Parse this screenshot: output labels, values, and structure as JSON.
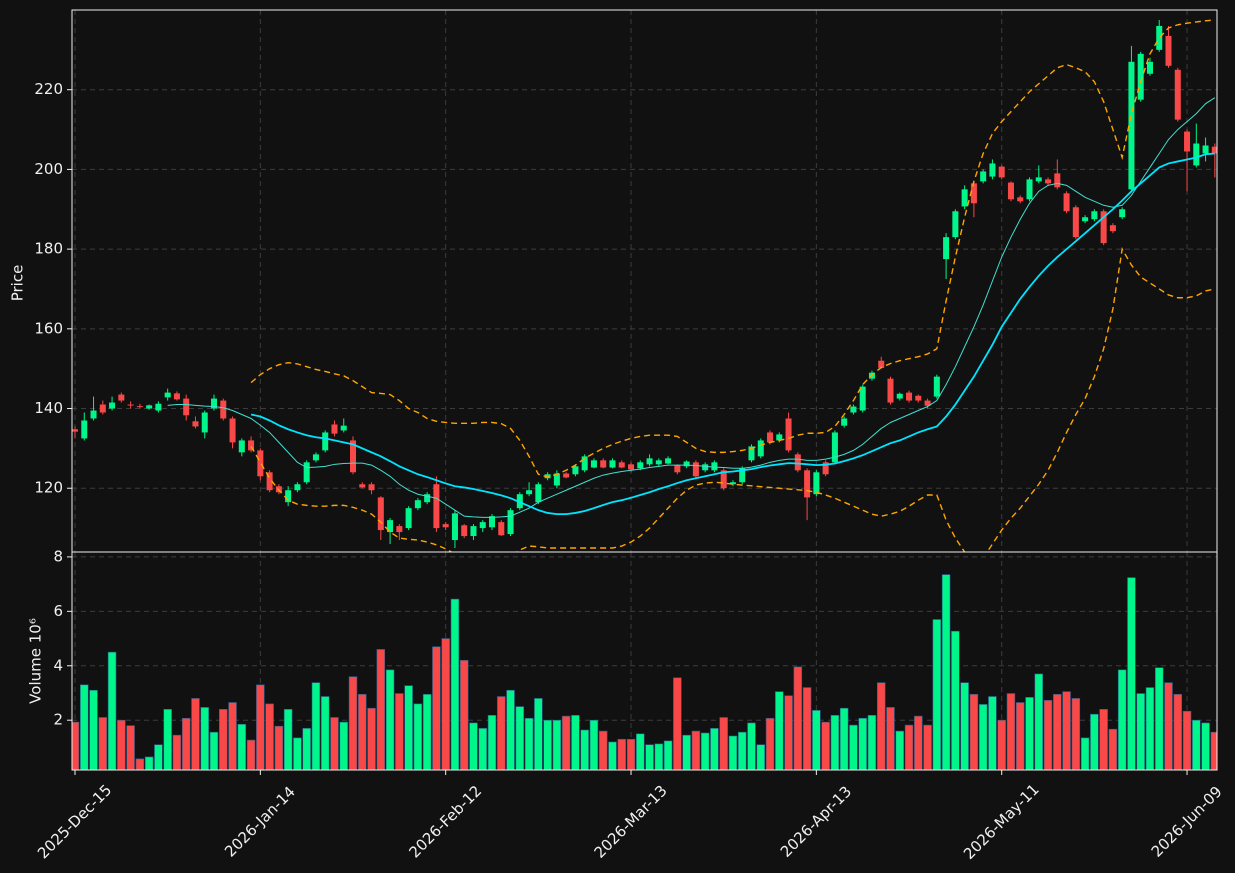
{
  "chart_data": {
    "type": "candlestick",
    "ylabel": "Price",
    "ylim": [
      104,
      240
    ],
    "yticks": [
      120,
      140,
      160,
      180,
      200,
      220
    ],
    "grid": true,
    "up_color": "#00f58a",
    "down_color": "#f84848",
    "categories": [
      "2025-Dec-15",
      null,
      null,
      null,
      null,
      null,
      null,
      null,
      null,
      null,
      null,
      null,
      null,
      null,
      null,
      null,
      null,
      null,
      null,
      null,
      "2026-Jan-14",
      null,
      null,
      null,
      null,
      null,
      null,
      null,
      null,
      null,
      null,
      null,
      null,
      null,
      null,
      null,
      null,
      null,
      null,
      null,
      "2026-Feb-12",
      null,
      null,
      null,
      null,
      null,
      null,
      null,
      null,
      null,
      null,
      null,
      null,
      null,
      null,
      null,
      null,
      null,
      null,
      null,
      "2026-Mar-13",
      null,
      null,
      null,
      null,
      null,
      null,
      null,
      null,
      null,
      null,
      null,
      null,
      null,
      null,
      null,
      null,
      null,
      null,
      null,
      "2026-Apr-13",
      null,
      null,
      null,
      null,
      null,
      null,
      null,
      null,
      null,
      null,
      null,
      null,
      null,
      null,
      null,
      null,
      null,
      null,
      null,
      "2026-May-11",
      null,
      null,
      null,
      null,
      null,
      null,
      null,
      null,
      null,
      null,
      null,
      null,
      null,
      null,
      null,
      null,
      null,
      null,
      null,
      "2026-Jun-09",
      null,
      null,
      null
    ],
    "open": [
      134.8,
      132.5,
      137.5,
      141,
      140,
      143.5,
      141,
      140.6,
      140,
      139.5,
      142.8,
      143.8,
      142.5,
      136.8,
      134,
      140,
      142,
      137.5,
      129,
      132,
      129.5,
      124,
      120.5,
      116.5,
      119.5,
      121.5,
      127,
      129.5,
      136,
      134.5,
      132,
      121,
      121,
      117.7,
      109,
      110.5,
      110,
      115,
      116.5,
      121,
      111,
      107,
      110.7,
      108,
      110,
      110.2,
      111.5,
      108.5,
      115,
      118.5,
      116.5,
      122.5,
      120.7,
      123.7,
      123.5,
      124.5,
      125.2,
      127,
      125.2,
      126.5,
      126,
      125,
      126,
      126,
      126.2,
      125.7,
      125.5,
      126.5,
      124.5,
      124.5,
      124.5,
      121,
      121.5,
      127,
      128,
      134,
      132,
      137.5,
      128.5,
      124.5,
      118.5,
      126.5,
      126.5,
      135.7,
      139,
      139.5,
      147.5,
      152,
      147.5,
      142.5,
      144,
      143.2,
      142,
      143,
      177.5,
      183,
      190.7,
      196.5,
      197,
      198.2,
      200.7,
      196.7,
      193,
      192.5,
      197,
      197.5,
      199,
      194,
      190.5,
      187,
      187.5,
      189.5,
      186,
      188,
      195,
      217.5,
      224,
      230,
      233.5,
      225,
      209.5,
      201,
      204,
      205.7
    ],
    "high": [
      135.5,
      139,
      143,
      142,
      143,
      144,
      141.8,
      141.2,
      141,
      141.8,
      145,
      144.3,
      143.5,
      138,
      139.5,
      143.5,
      142.5,
      138,
      132.5,
      133,
      130,
      124.5,
      121,
      120.5,
      121.5,
      127,
      129,
      134.5,
      137,
      137.5,
      133,
      121.5,
      121.5,
      118,
      112.5,
      111,
      115.5,
      117.5,
      119,
      123,
      111.5,
      114.5,
      111,
      111,
      112,
      113.5,
      112,
      115,
      119,
      121.5,
      121.5,
      124,
      124.5,
      124,
      126,
      128.5,
      127.5,
      127.5,
      127.5,
      127,
      126.5,
      127,
      128.5,
      127.5,
      128,
      126,
      127,
      127,
      126.5,
      127,
      125,
      122,
      125.5,
      131,
      132.5,
      134.5,
      134,
      139,
      129,
      125,
      124.5,
      127,
      134.5,
      138,
      141,
      146,
      149.5,
      153,
      148,
      144,
      144.5,
      143.5,
      142.5,
      148.5,
      184,
      190,
      196,
      197,
      200,
      202.5,
      201,
      197,
      193.5,
      198,
      201,
      198,
      202.5,
      194.5,
      191,
      188.5,
      190,
      190,
      186.5,
      190.5,
      231,
      229.5,
      228,
      237.5,
      236,
      225.5,
      210,
      211.5,
      208,
      206.5
    ],
    "low": [
      132.5,
      132,
      137,
      138.5,
      139.5,
      141.5,
      140,
      140,
      139.7,
      139,
      142,
      142,
      137,
      135,
      132.5,
      139.5,
      137,
      130,
      128,
      129,
      122,
      119,
      118.5,
      115.5,
      119,
      121,
      126.5,
      129,
      133,
      134,
      123.5,
      120,
      118.5,
      107,
      106,
      107,
      109.5,
      114.5,
      116,
      109,
      109.5,
      105,
      107.5,
      107,
      109,
      109.5,
      108,
      108,
      114.5,
      118,
      116,
      122,
      120,
      122.5,
      123,
      124,
      125,
      125,
      125,
      125,
      124,
      124.5,
      125.5,
      125.5,
      126,
      123.5,
      125,
      122.5,
      124,
      124,
      119.5,
      120.5,
      121,
      126.5,
      127.5,
      131,
      131.5,
      129,
      124,
      112,
      118,
      123,
      126,
      135.2,
      138.5,
      139,
      147,
      150,
      141,
      142,
      141.5,
      141.5,
      140,
      142.5,
      172.5,
      182.5,
      190,
      188,
      196.5,
      197.5,
      197.5,
      192,
      191.5,
      192,
      196.5,
      196,
      195,
      189,
      182.5,
      186.5,
      187,
      181,
      184,
      187.5,
      194.5,
      217,
      223.5,
      229.5,
      225.5,
      212,
      194.5,
      200.5,
      202,
      198
    ],
    "close": [
      134.2,
      137,
      139.5,
      139,
      141.5,
      142,
      140.8,
      140.4,
      140.8,
      141.2,
      144,
      142.3,
      138.3,
      135.5,
      139,
      142.5,
      137.5,
      131.5,
      132,
      129.5,
      123,
      119.5,
      119,
      119.5,
      121,
      126.5,
      128.5,
      134,
      133.7,
      135.7,
      124,
      120.2,
      119.5,
      109.5,
      112,
      109,
      115,
      117,
      118.5,
      110,
      110.2,
      113.7,
      108,
      110.5,
      111.5,
      113,
      108.2,
      114.5,
      118.5,
      119.5,
      121,
      123.5,
      123.7,
      122.7,
      125.5,
      128,
      127,
      125.2,
      127,
      125.2,
      124.7,
      126.5,
      127.5,
      127,
      127.5,
      124,
      126.7,
      123,
      126,
      126.5,
      120,
      121.5,
      125,
      130.5,
      132,
      131.5,
      133.5,
      129.5,
      124.5,
      117.7,
      124,
      123.5,
      134,
      137.5,
      140.5,
      145.5,
      149,
      150.2,
      141.5,
      143.7,
      142,
      142,
      140.7,
      148,
      183,
      189.5,
      195,
      191.5,
      199.5,
      201.5,
      198,
      192.5,
      192,
      197.5,
      198,
      196.5,
      195.5,
      189.5,
      183,
      188,
      189.5,
      181.5,
      184.5,
      190,
      227,
      229,
      227,
      236,
      226,
      212.5,
      204.5,
      206.5,
      206,
      204
    ],
    "series": [
      {
        "color": "#40e0d0",
        "linestyle": "solid",
        "values": [
          null,
          null,
          null,
          null,
          null,
          null,
          null,
          null,
          null,
          null,
          140.8,
          141,
          141,
          140.8,
          140.6,
          140.5,
          140.2,
          139.5,
          138.5,
          137.5,
          135.8,
          134,
          131.5,
          129,
          126.5,
          125.2,
          125.3,
          125.5,
          126,
          126.2,
          126.3,
          126.3,
          125.8,
          124.5,
          123,
          121,
          119.5,
          118.5,
          118,
          117.5,
          116,
          114.5,
          113,
          112.8,
          112.7,
          112.7,
          112.8,
          113,
          114,
          115,
          116.5,
          117.5,
          118.5,
          119.5,
          120.5,
          121.5,
          122.5,
          123.3,
          123.8,
          124.2,
          124.5,
          124.8,
          125.2,
          125.5,
          125.8,
          125.8,
          125.8,
          125.7,
          125.5,
          125.3,
          125.2,
          125,
          125,
          125.3,
          125.8,
          126.5,
          127,
          127.3,
          127.3,
          127,
          127,
          127.3,
          127.8,
          128.5,
          129.5,
          131,
          133,
          135,
          136.5,
          137.5,
          138.5,
          139.5,
          140.5,
          142,
          146,
          150.5,
          155.5,
          160.5,
          166,
          172,
          178,
          183,
          187.5,
          191.5,
          194.5,
          196,
          196.5,
          196,
          194.5,
          193,
          192,
          191,
          190.5,
          191,
          193.5,
          197,
          200.5,
          204,
          207.5,
          210,
          212,
          214,
          216.5,
          218
        ]
      },
      {
        "color": "#00e5ff",
        "linestyle": "solid",
        "values": [
          null,
          null,
          null,
          null,
          null,
          null,
          null,
          null,
          null,
          null,
          null,
          null,
          null,
          null,
          null,
          null,
          null,
          null,
          null,
          138.5,
          138,
          137,
          135.8,
          134.8,
          134,
          133.3,
          132.8,
          132.5,
          132,
          131.5,
          131,
          130,
          129,
          128,
          126.8,
          125.5,
          124.5,
          123.5,
          122.8,
          122,
          121.2,
          120.5,
          120.2,
          119.8,
          119.3,
          118.8,
          118.2,
          117.5,
          116.5,
          115.5,
          114.5,
          113.8,
          113.5,
          113.5,
          113.8,
          114.3,
          115,
          115.8,
          116.5,
          117,
          117.6,
          118.3,
          119,
          119.8,
          120.5,
          121.3,
          122,
          122.5,
          123,
          123.5,
          124,
          124.2,
          124.5,
          124.8,
          125.3,
          125.7,
          126,
          126.3,
          126.2,
          126,
          125.8,
          125.9,
          126.2,
          126.8,
          127.5,
          128.3,
          129.3,
          130.3,
          131.3,
          132,
          133,
          134,
          134.8,
          135.5,
          138,
          141,
          144.5,
          148,
          152,
          156,
          160.5,
          164,
          167.5,
          170.5,
          173.3,
          175.8,
          178,
          180,
          182,
          184,
          186,
          188,
          190,
          192.2,
          194.5,
          196.5,
          198.5,
          200.5,
          201.5,
          202,
          202.5,
          203,
          203.8,
          204
        ]
      },
      {
        "color": "#ffa500",
        "linestyle": "dashed",
        "values": [
          null,
          null,
          null,
          null,
          null,
          null,
          null,
          null,
          null,
          null,
          null,
          null,
          null,
          null,
          null,
          null,
          null,
          null,
          null,
          146.5,
          148.5,
          150,
          151,
          151.5,
          151.2,
          150.5,
          149.8,
          149.3,
          148.7,
          148.2,
          147,
          145.5,
          144,
          143.8,
          143.5,
          142,
          140,
          139,
          137.5,
          136.8,
          136.5,
          136.3,
          136.3,
          136.3,
          136.5,
          136.5,
          136.2,
          135,
          132,
          128,
          123.5,
          122.8,
          123.5,
          124.5,
          125.8,
          127.5,
          128.8,
          130,
          131,
          131.8,
          132.5,
          133,
          133.3,
          133.3,
          133.3,
          133,
          131.5,
          130,
          129.2,
          129,
          129,
          129.2,
          129.5,
          130,
          130.8,
          131.5,
          132,
          132.5,
          133.3,
          133.8,
          133.8,
          134,
          135.5,
          138.5,
          142,
          146,
          148.5,
          150.3,
          151.3,
          152,
          152.5,
          153,
          153.7,
          155,
          167,
          178,
          188,
          197,
          204,
          209,
          212,
          214.5,
          217,
          219.5,
          221.5,
          223.5,
          225.5,
          226.3,
          225.5,
          224.5,
          222,
          217,
          210,
          203,
          214,
          222,
          229,
          233,
          235.5,
          236.3,
          236.7,
          237,
          237.3,
          237.5
        ]
      },
      {
        "color": "#ffa500",
        "linestyle": "dashed",
        "values": [
          null,
          null,
          null,
          null,
          null,
          null,
          null,
          null,
          null,
          null,
          null,
          null,
          null,
          null,
          null,
          null,
          null,
          null,
          null,
          130.5,
          126.5,
          122.5,
          119.5,
          117,
          116,
          115.7,
          115.5,
          115.5,
          115.7,
          115.7,
          115.2,
          114.5,
          113.5,
          111.5,
          109,
          107.5,
          107.2,
          107,
          106.5,
          105.8,
          104.8,
          103.5,
          102,
          101,
          100.5,
          100.5,
          101.5,
          103,
          104.5,
          105.5,
          105.3,
          105,
          105,
          105,
          105,
          105,
          105,
          105,
          105,
          105.5,
          106.5,
          108,
          110,
          112.5,
          115,
          117.5,
          119.5,
          120.8,
          121.3,
          121.5,
          121.3,
          121,
          120.8,
          120.6,
          120.4,
          120.2,
          120,
          119.8,
          119.6,
          119.4,
          119,
          118.3,
          117.5,
          116.5,
          115.5,
          114.5,
          113.5,
          113,
          113.5,
          114.2,
          115.5,
          117,
          118.3,
          118.3,
          112,
          107.5,
          104,
          101,
          102.5,
          106,
          109.5,
          112.5,
          115,
          118,
          121,
          124.5,
          129,
          134,
          138.5,
          142.5,
          148,
          155,
          165,
          180,
          176,
          173,
          171.5,
          170,
          168.5,
          167.8,
          167.8,
          168.3,
          169.5,
          170
        ]
      }
    ],
    "volume": {
      "type": "bar",
      "ylabel": "Volume  10⁶",
      "ylim": [
        0.17,
        8.18
      ],
      "yticks": [
        2,
        4,
        6,
        8
      ],
      "values": [
        1.93,
        3.3,
        3.1,
        2.1,
        4.5,
        2.0,
        1.8,
        0.58,
        0.65,
        1.1,
        2.4,
        1.45,
        2.07,
        2.8,
        2.47,
        1.56,
        2.4,
        2.65,
        1.85,
        1.27,
        3.3,
        2.6,
        1.78,
        2.4,
        1.35,
        1.7,
        3.38,
        2.87,
        2.1,
        1.93,
        3.6,
        2.95,
        2.44,
        4.6,
        3.85,
        2.98,
        3.27,
        2.6,
        2.95,
        4.7,
        5.0,
        6.45,
        4.2,
        1.9,
        1.7,
        2.18,
        2.87,
        3.1,
        2.5,
        2.07,
        2.8,
        2.0,
        2.0,
        2.15,
        2.18,
        1.64,
        2.0,
        1.6,
        1.2,
        1.3,
        1.3,
        1.5,
        1.1,
        1.13,
        1.24,
        3.56,
        1.45,
        1.6,
        1.53,
        1.7,
        2.1,
        1.42,
        1.56,
        1.9,
        1.1,
        2.07,
        3.05,
        2.9,
        3.96,
        3.2,
        2.36,
        1.93,
        2.18,
        2.44,
        1.82,
        2.07,
        2.18,
        3.38,
        2.47,
        1.6,
        1.82,
        2.15,
        1.82,
        5.7,
        7.35,
        5.27,
        3.38,
        2.95,
        2.58,
        2.87,
        2.0,
        2.98,
        2.65,
        2.84,
        3.7,
        2.73,
        2.95,
        3.05,
        2.8,
        1.35,
        2.22,
        2.4,
        1.67,
        3.85,
        7.24,
        2.98,
        3.2,
        3.93,
        3.38,
        2.95,
        2.33,
        2.0,
        1.9,
        1.56
      ]
    }
  }
}
